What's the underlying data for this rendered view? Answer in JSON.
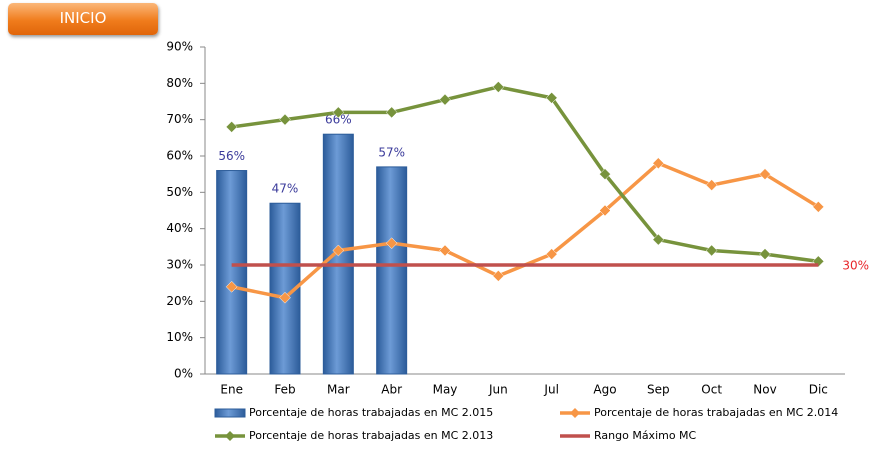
{
  "button": {
    "label": "INICIO"
  },
  "chart_data": {
    "type": "combo",
    "categories": [
      "Ene",
      "Feb",
      "Mar",
      "Abr",
      "May",
      "Jun",
      "Jul",
      "Ago",
      "Sep",
      "Oct",
      "Nov",
      "Dic"
    ],
    "ylim": [
      0,
      90
    ],
    "yticks": [
      {
        "value": 0,
        "label": "0%"
      },
      {
        "value": 10,
        "label": "10%"
      },
      {
        "value": 20,
        "label": "20%"
      },
      {
        "value": 30,
        "label": "30%"
      },
      {
        "value": 40,
        "label": "40%"
      },
      {
        "value": 50,
        "label": "50%"
      },
      {
        "value": 60,
        "label": "60%"
      },
      {
        "value": 70,
        "label": "70%"
      },
      {
        "value": 80,
        "label": "80%"
      },
      {
        "value": 90,
        "label": "90%"
      }
    ],
    "series": [
      {
        "name": "Porcentaje de horas trabajadas en MC 2.015",
        "type": "bar",
        "color": "#4f81bd",
        "label_color": "#3b3b9b",
        "values": [
          56,
          47,
          66,
          57,
          null,
          null,
          null,
          null,
          null,
          null,
          null,
          null
        ],
        "value_labels": [
          "56%",
          "47%",
          "66%",
          "57%",
          null,
          null,
          null,
          null,
          null,
          null,
          null,
          null
        ]
      },
      {
        "name": "Porcentaje de horas trabajadas en MC 2.014",
        "type": "line",
        "marker": "diamond",
        "color": "#f79646",
        "values": [
          24,
          21,
          34,
          36,
          34,
          27,
          33,
          45,
          58,
          52,
          55,
          46
        ]
      },
      {
        "name": "Porcentaje de horas trabajadas en MC 2.013",
        "type": "line",
        "marker": "diamond",
        "color": "#77933c",
        "values": [
          68,
          70,
          72,
          72,
          75.5,
          79,
          76,
          55,
          37,
          34,
          33,
          31
        ]
      },
      {
        "name": "Rango Máximo MC",
        "type": "line",
        "color": "#c0504d",
        "label_color": "#e8262a",
        "values": [
          30,
          30,
          30,
          30,
          30,
          30,
          30,
          30,
          30,
          30,
          30,
          30
        ],
        "value_labels": [
          null,
          null,
          null,
          null,
          null,
          null,
          null,
          null,
          null,
          null,
          null,
          "30%"
        ]
      }
    ]
  }
}
